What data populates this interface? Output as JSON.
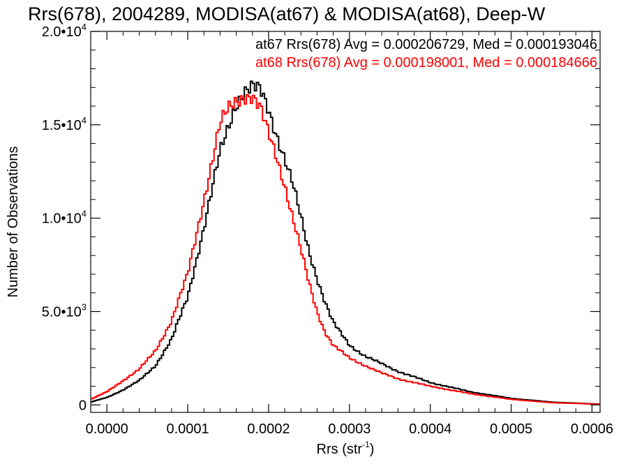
{
  "chart_data": {
    "type": "line",
    "step": true,
    "title": "Rrs(678), 2004289, MODISA(at67) & MODISA(at68), Deep-W",
    "xlabel": "Rrs (str",
    "xlabel_sup": "-1",
    "xlabel_close": ")",
    "ylabel": "Number of Observations",
    "xlim": [
      -2e-05,
      0.00061
    ],
    "ylim": [
      -400,
      20000
    ],
    "grid": false,
    "x_ticks": [
      {
        "value": 0.0,
        "label": "0.0000"
      },
      {
        "value": 0.0001,
        "label": "0.0001"
      },
      {
        "value": 0.0002,
        "label": "0.0002"
      },
      {
        "value": 0.0003,
        "label": "0.0003"
      },
      {
        "value": 0.0004,
        "label": "0.0004"
      },
      {
        "value": 0.0005,
        "label": "0.0005"
      },
      {
        "value": 0.0006,
        "label": "0.0006"
      }
    ],
    "y_ticks": [
      {
        "value": 0,
        "mant": "0",
        "exp": ""
      },
      {
        "value": 5000,
        "mant": "5.0•10",
        "exp": "3"
      },
      {
        "value": 10000,
        "mant": "1.0•10",
        "exp": "4"
      },
      {
        "value": 15000,
        "mant": "1.5•10",
        "exp": "4"
      },
      {
        "value": 20000,
        "mant": "2.0•10",
        "exp": "4"
      }
    ],
    "annotations": [
      {
        "text": "at67 Rrs(678) Avg = 0.000206729, Med = 0.000193046",
        "color": "#000000"
      },
      {
        "text": "at68 Rrs(678) Avg = 0.000198001, Med = 0.000184666",
        "color": "#ff0000"
      }
    ],
    "series": [
      {
        "name": "at67",
        "color": "#000000",
        "x": [
          -2e-05,
          0.0,
          2e-05,
          4e-05,
          6e-05,
          8e-05,
          0.0001,
          0.00012,
          0.00014,
          0.00016,
          0.00017,
          0.00018,
          0.00019,
          0.0002,
          0.00021,
          0.00022,
          0.00023,
          0.00024,
          0.00025,
          0.00026,
          0.00027,
          0.00028,
          0.0003,
          0.00032,
          0.00034,
          0.00036,
          0.0004,
          0.00045,
          0.0005,
          0.00055,
          0.0006,
          0.00061
        ],
        "y": [
          150,
          400,
          800,
          1300,
          2100,
          3500,
          5800,
          9500,
          13500,
          16200,
          16800,
          17000,
          16800,
          15800,
          14500,
          13200,
          11800,
          10000,
          8200,
          6800,
          5500,
          4400,
          3200,
          2600,
          2200,
          1800,
          1200,
          700,
          350,
          150,
          60,
          40
        ]
      },
      {
        "name": "at68",
        "color": "#ff0000",
        "x": [
          -2e-05,
          0.0,
          2e-05,
          4e-05,
          6e-05,
          8e-05,
          0.0001,
          0.00012,
          0.00014,
          0.00015,
          0.00016,
          0.00017,
          0.00018,
          0.00019,
          0.0002,
          0.00021,
          0.00022,
          0.00023,
          0.00024,
          0.00025,
          0.00026,
          0.00027,
          0.00028,
          0.0003,
          0.00032,
          0.00034,
          0.00036,
          0.0004,
          0.00045,
          0.0005,
          0.00055,
          0.0006,
          0.00061
        ],
        "y": [
          300,
          700,
          1300,
          1900,
          2900,
          4500,
          7000,
          11000,
          15000,
          15800,
          16300,
          16600,
          16500,
          15800,
          14500,
          13300,
          11800,
          10000,
          8300,
          6500,
          5000,
          3900,
          3200,
          2500,
          2100,
          1700,
          1400,
          1000,
          600,
          300,
          120,
          50,
          30
        ]
      }
    ]
  }
}
